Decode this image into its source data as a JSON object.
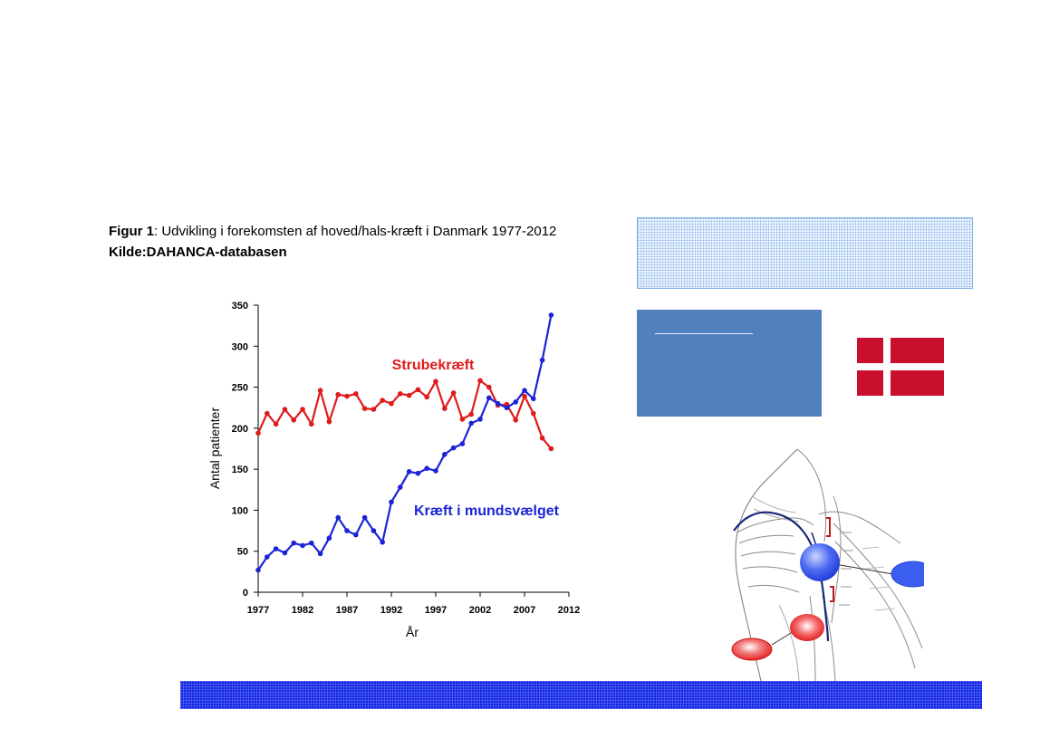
{
  "caption": {
    "line1_bold": "Figur 1",
    "line1_rest": ": Udvikling i forekomsten af hoved/hals-kræft i Danmark 1977-2012",
    "line2": "Kilde:DAHANCA-databasen"
  },
  "colors": {
    "strube": "#e01b1b",
    "munds": "#1a24d6",
    "flag_red": "#c8102e",
    "box_blue": "#5080bd",
    "footer_blue": "#1226e6"
  },
  "chart_data": {
    "type": "line",
    "xlabel": "År",
    "ylabel": "Antal patienter",
    "xlim": [
      1977,
      2012
    ],
    "ylim": [
      0,
      350
    ],
    "xticks": [
      1977,
      1982,
      1987,
      1992,
      1997,
      2002,
      2007,
      2012
    ],
    "yticks": [
      0,
      50,
      100,
      150,
      200,
      250,
      300,
      350
    ],
    "grid": false,
    "legend": "inline labels",
    "x": [
      1977,
      1978,
      1979,
      1980,
      1981,
      1982,
      1983,
      1984,
      1985,
      1986,
      1987,
      1988,
      1989,
      1990,
      1991,
      1992,
      1993,
      1994,
      1995,
      1996,
      1997,
      1998,
      1999,
      2000,
      2001,
      2002,
      2003,
      2004,
      2005,
      2006,
      2007,
      2008,
      2009,
      2010
    ],
    "series": [
      {
        "name": "Strubekræft",
        "color": "#e01b1b",
        "values": [
          194,
          218,
          205,
          223,
          210,
          223,
          205,
          246,
          208,
          241,
          239,
          242,
          224,
          223,
          234,
          230,
          242,
          240,
          247,
          238,
          257,
          224,
          243,
          211,
          217,
          258,
          250,
          228,
          229,
          210,
          239,
          218,
          188,
          175
        ]
      },
      {
        "name": "Kræft i mundsvælget",
        "color": "#1a24d6",
        "values": [
          27,
          43,
          53,
          48,
          60,
          57,
          60,
          47,
          66,
          91,
          75,
          70,
          91,
          75,
          61,
          110,
          128,
          147,
          145,
          151,
          148,
          168,
          176,
          181,
          206,
          211,
          237,
          230,
          225,
          232,
          246,
          236,
          283,
          338
        ]
      }
    ]
  },
  "anatomy_icon": "head-neck-anatomy-illustration"
}
